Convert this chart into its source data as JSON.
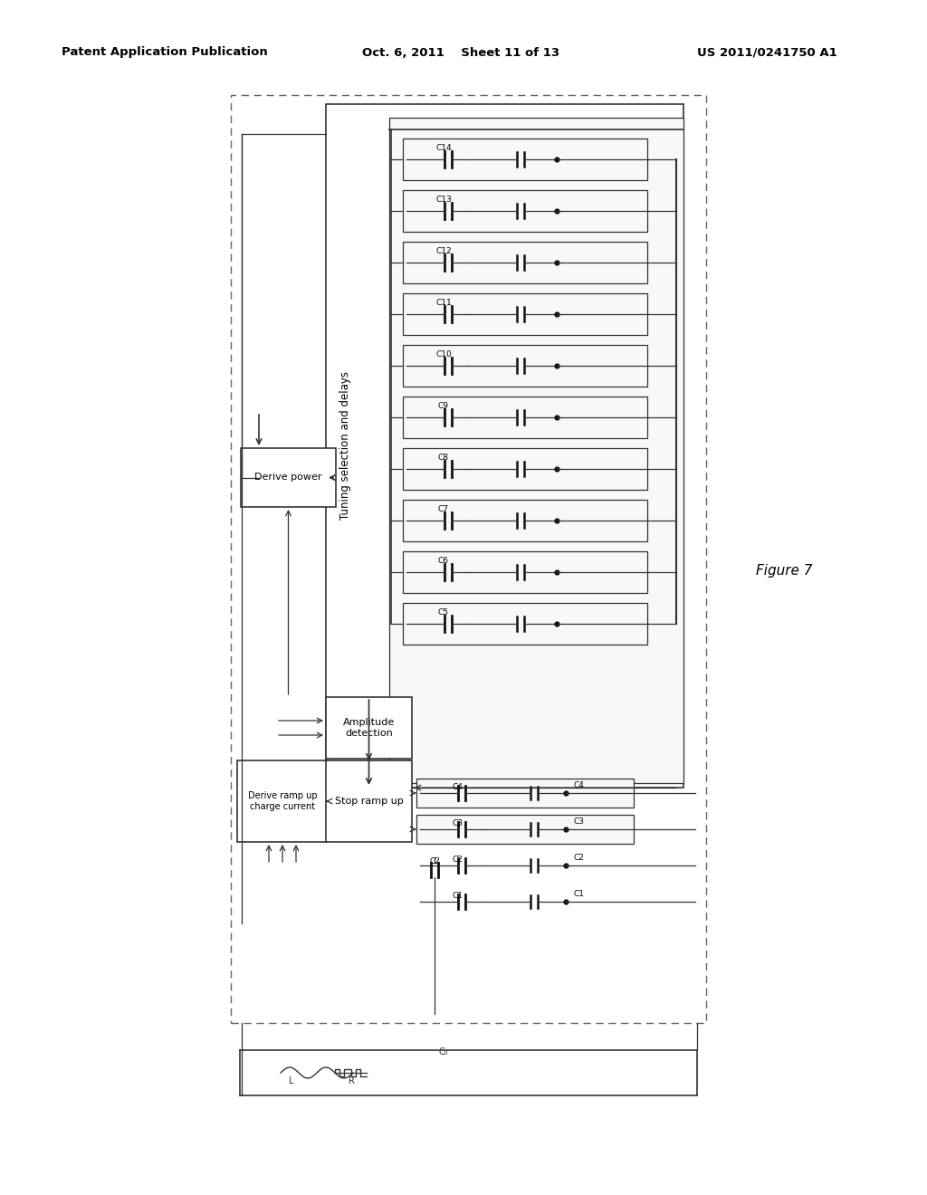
{
  "title_left": "Patent Application Publication",
  "title_center": "Oct. 6, 2011    Sheet 11 of 13",
  "title_right": "US 2011/0241750 A1",
  "figure_label": "Figure 7",
  "background": "#ffffff",
  "cap_labels_top": [
    "C14",
    "C13",
    "C12",
    "C11",
    "C10",
    "C9",
    "C8",
    "C7",
    "C6",
    "C5"
  ],
  "cap_labels_bot": [
    "C4",
    "C3",
    "C2",
    "C1"
  ],
  "box_derive_power": "Derive power",
  "box_amplitude": "Amplitude\ndetection",
  "box_derive_ramp": "Derive ramp up\ncharge current",
  "box_stop_ramp": "Stop ramp up",
  "box_tuning": "Tuning selection and delays"
}
